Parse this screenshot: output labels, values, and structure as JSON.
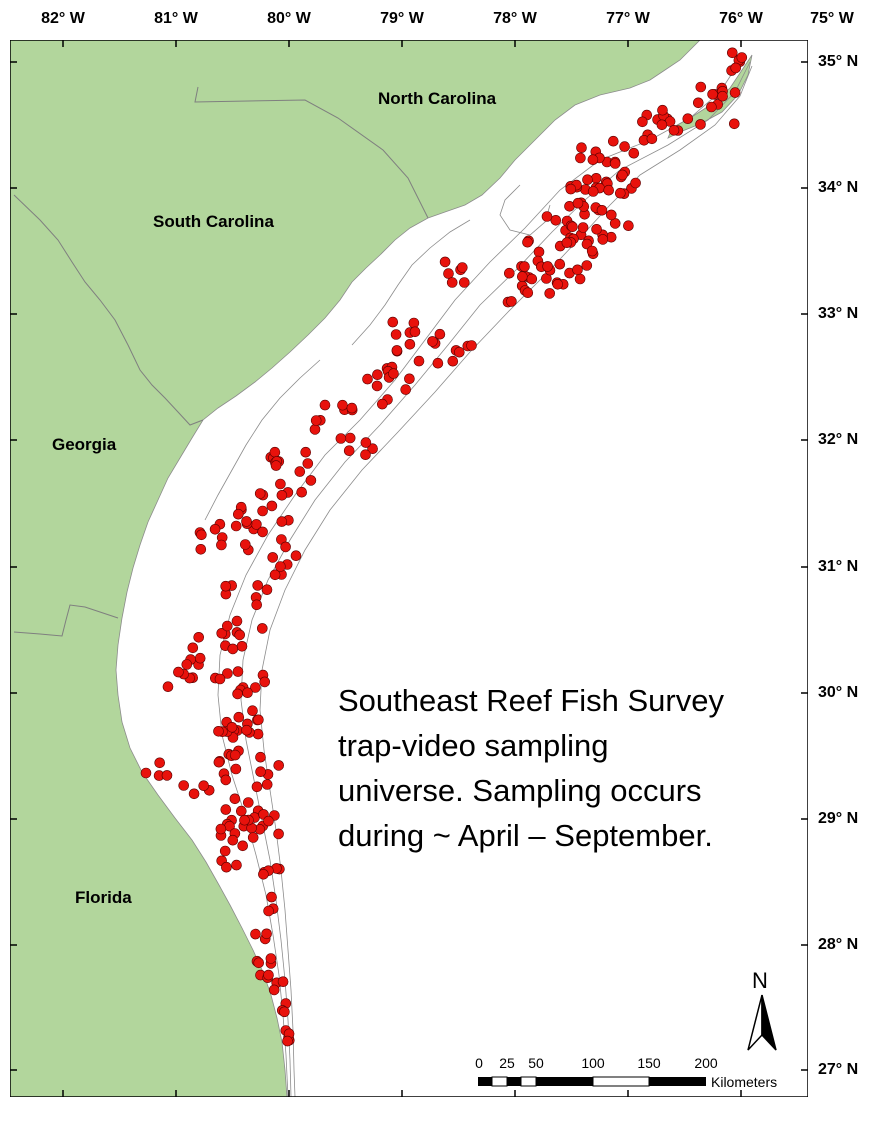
{
  "map": {
    "lon_labels": [
      "82° W",
      "81° W",
      "80° W",
      "79° W",
      "78° W",
      "77° W",
      "76° W",
      "75° W"
    ],
    "lat_labels": [
      "35° N",
      "34° N",
      "33° N",
      "32° N",
      "31° N",
      "30° N",
      "29° N",
      "28° N",
      "27° N"
    ],
    "states": {
      "north_carolina": "North Carolina",
      "south_carolina": "South Carolina",
      "georgia": "Georgia",
      "florida": "Florida"
    },
    "description_lines": [
      "Southeast Reef Fish Survey",
      "trap-video sampling",
      "universe.  Sampling occurs",
      "during ~ April – September."
    ],
    "scale_bar": {
      "labels": [
        "0",
        "25",
        "50",
        "100",
        "150",
        "200"
      ],
      "unit": "Kilometers"
    },
    "north_arrow": "N",
    "colors": {
      "land": "#b2d69c",
      "ocean": "#ffffff",
      "sample_points": "#e8120c",
      "contours": "#8c8c8c"
    },
    "sample_point_icon": "red-circle-marker"
  }
}
